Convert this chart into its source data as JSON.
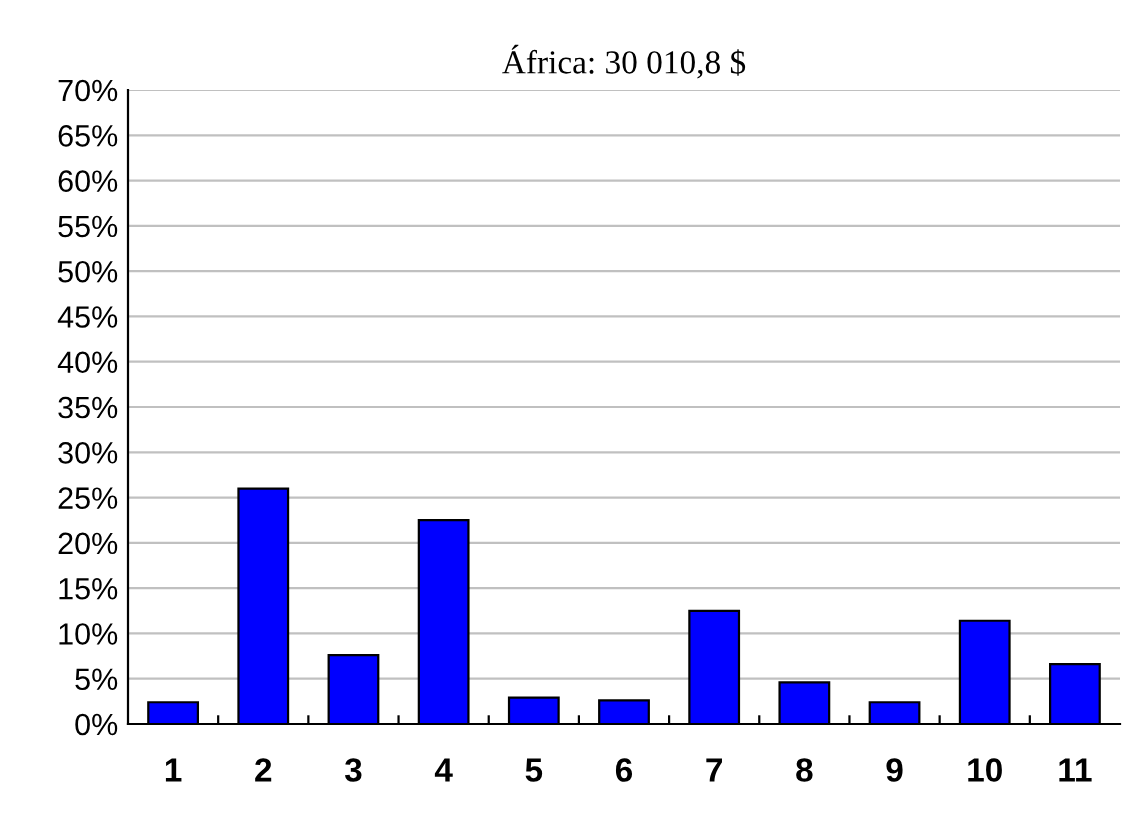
{
  "chart_data": {
    "type": "bar",
    "title": "África: 30 010,8 $",
    "categories": [
      "1",
      "2",
      "3",
      "4",
      "5",
      "6",
      "7",
      "8",
      "9",
      "10",
      "11"
    ],
    "values": [
      2.4,
      26.0,
      7.6,
      22.5,
      2.9,
      2.6,
      12.5,
      4.6,
      2.4,
      11.4,
      6.6
    ],
    "color": "#0000ff",
    "ylim": [
      0,
      70
    ],
    "yticks": [
      {
        "value": 0,
        "label": "0%"
      },
      {
        "value": 5,
        "label": "5%"
      },
      {
        "value": 10,
        "label": "10%"
      },
      {
        "value": 15,
        "label": "15%"
      },
      {
        "value": 20,
        "label": "20%"
      },
      {
        "value": 25,
        "label": "25%"
      },
      {
        "value": 30,
        "label": "30%"
      },
      {
        "value": 35,
        "label": "35%"
      },
      {
        "value": 40,
        "label": "40%"
      },
      {
        "value": 45,
        "label": "45%"
      },
      {
        "value": 50,
        "label": "50%"
      },
      {
        "value": 55,
        "label": "55%"
      },
      {
        "value": 60,
        "label": "60%"
      },
      {
        "value": 65,
        "label": "65%"
      },
      {
        "value": 70,
        "label": "70%"
      }
    ],
    "grid": "y"
  }
}
